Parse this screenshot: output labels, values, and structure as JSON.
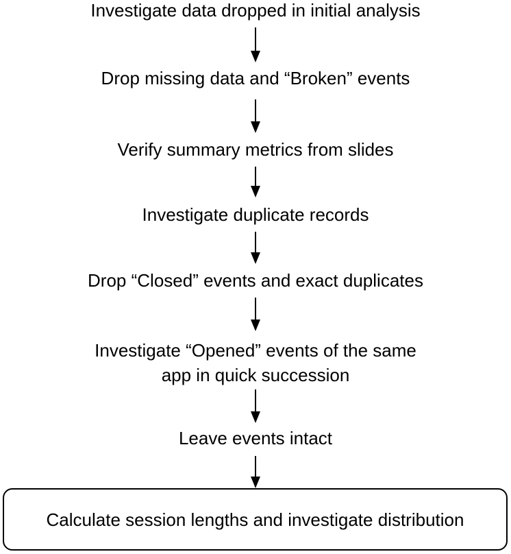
{
  "flowchart": {
    "steps": [
      "Investigate data dropped in initial analysis",
      "Drop missing data and “Broken” events",
      "Verify summary metrics from slides",
      "Investigate duplicate records",
      "Drop “Closed” events and exact duplicates",
      "Investigate “Opened” events of the same",
      "app in quick succession",
      "Leave events intact"
    ],
    "final_step": "Calculate session lengths and investigate distribution"
  }
}
